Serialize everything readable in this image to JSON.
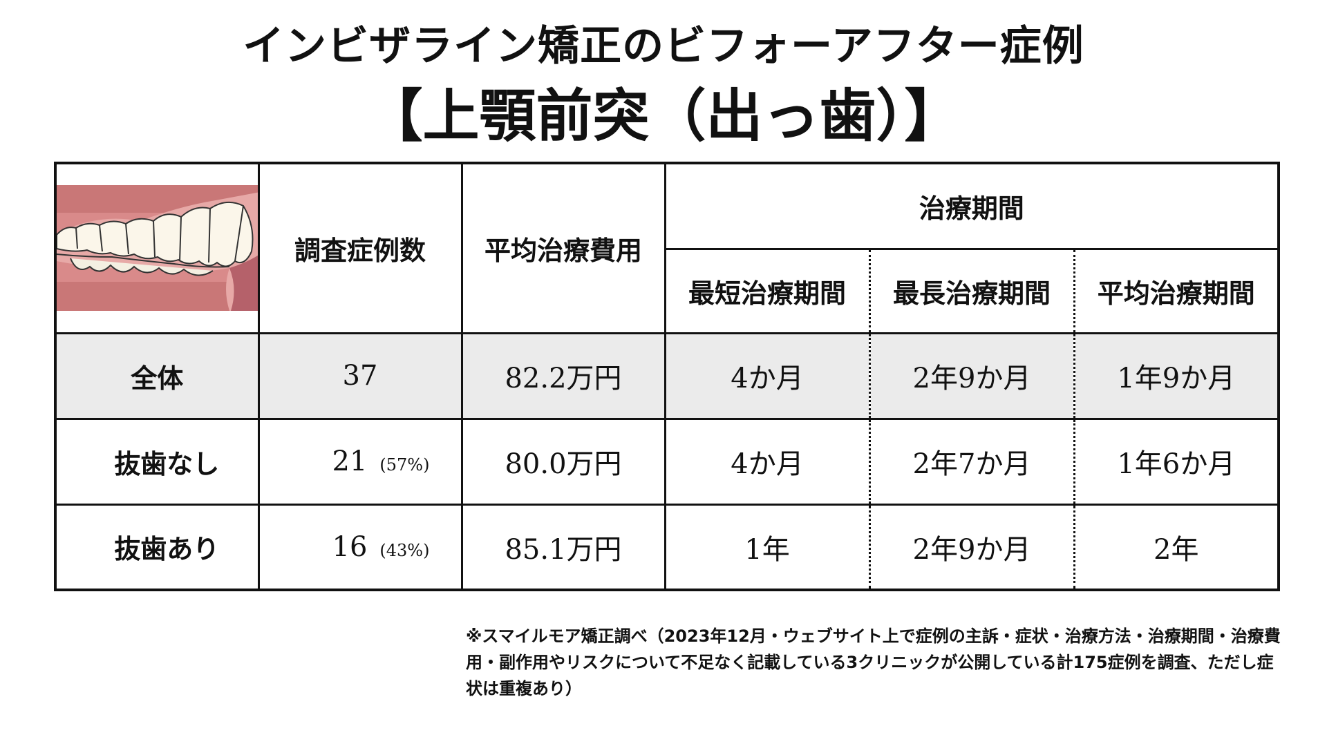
{
  "title": {
    "line1": "インビザライン矯正のビフォーアフター症例",
    "line2": "【上顎前突（出っ歯）】"
  },
  "table": {
    "headers": {
      "case_count": "調査症例数",
      "avg_cost": "平均治療費用",
      "period_group": "治療期間",
      "shortest": "最短治療期間",
      "longest": "最長治療期間",
      "average": "平均治療期間"
    },
    "rows": [
      {
        "label": "全体",
        "count": "37",
        "percent": "",
        "cost": "82.2万円",
        "shortest": "4か月",
        "longest": "2年9か月",
        "average": "1年9か月"
      },
      {
        "label": "抜歯なし",
        "count": "21",
        "percent": "(57%)",
        "cost": "80.0万円",
        "shortest": "4か月",
        "longest": "2年7か月",
        "average": "1年6か月"
      },
      {
        "label": "抜歯あり",
        "count": "16",
        "percent": "(43%)",
        "cost": "85.1万円",
        "shortest": "1年",
        "longest": "2年9か月",
        "average": "2年"
      }
    ]
  },
  "footnote": "※スマイルモア矯正調べ（2023年12月・ウェブサイト上で症例の主訴・症状・治療方法・治療期間・治療費用・副作用やリスクについて不足なく記載している3クリニックが公開している計175症例を調査、ただし症状は重複あり）",
  "colors": {
    "gum": "#d98a8a",
    "gum_dark": "#c46f70",
    "total_row_bg": "#ebebeb",
    "border": "#111111"
  },
  "icons": {
    "illustration": "teeth-overjet-illustration"
  }
}
